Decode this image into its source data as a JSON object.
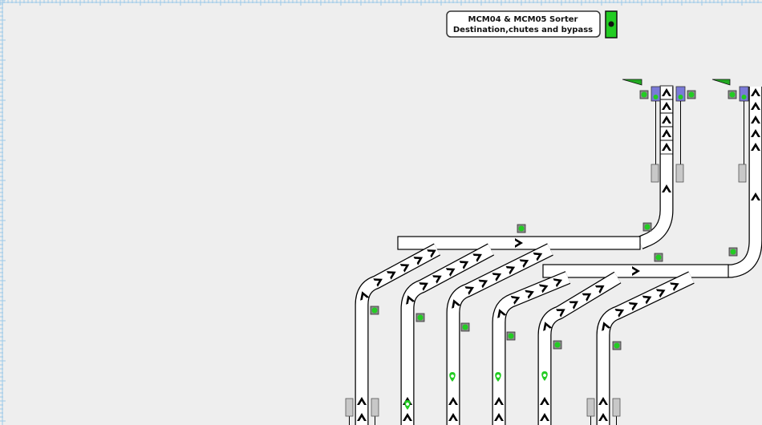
{
  "header": {
    "title_line1": "MCM04 & MCM05 Sorter",
    "title_line2": "Destination,chutes and bypass"
  }
}
